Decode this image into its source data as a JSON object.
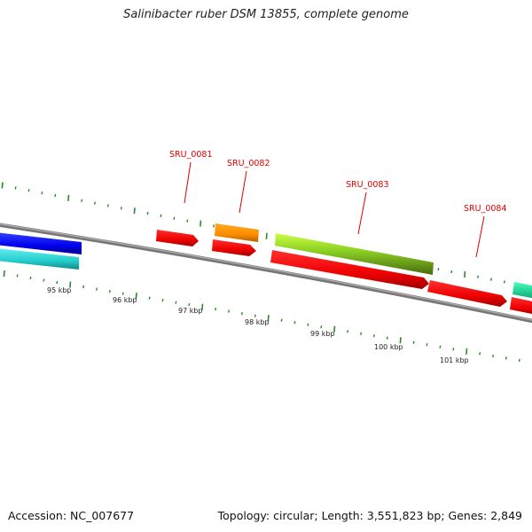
{
  "title": "Salinibacter ruber DSM 13855, complete genome",
  "footer": {
    "accession": "Accession: NC_007677",
    "summary": "Topology: circular; Length: 3,551,823 bp; Genes: 2,849"
  },
  "colors": {
    "backbone": "#888888",
    "tick": "#2a8a2a",
    "label": "#e00000"
  },
  "genes": [
    {
      "locus": "SRU_0081",
      "color": "#ff1a1a",
      "strand": "+"
    },
    {
      "locus": "SRU_0082",
      "color": "#ff1a1a",
      "strand": "+"
    },
    {
      "locus": "SRU_0083",
      "color": "#ff1a1a",
      "strand": "+"
    },
    {
      "locus": "SRU_0084",
      "color": "#ff1a1a",
      "strand": "+"
    }
  ],
  "scale_labels": [
    "95 kbp",
    "96 kbp",
    "97 kbp",
    "98 kbp",
    "99 kbp",
    "100 kbp",
    "101 kbp"
  ]
}
